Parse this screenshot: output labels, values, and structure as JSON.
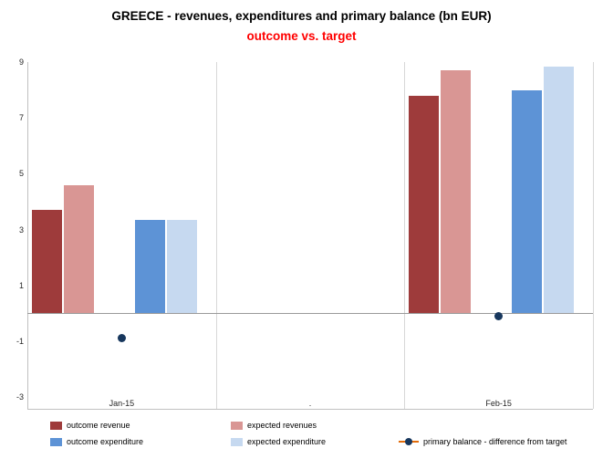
{
  "title": "GREECE - revenues, expenditures and primary balance (bn EUR)",
  "subtitle": "outcome vs. target",
  "colors": {
    "subtitle": "#ff0000",
    "outcome_revenue": "#9e3b3b",
    "expected_revenues": "#d99694",
    "outcome_expenditure": "#5d93d6",
    "expected_expenditure": "#c6d9f0",
    "primary_balance_dot": "#17375d",
    "legend_line": "#e36c09"
  },
  "chart_data": {
    "type": "bar",
    "subtype": "grouped bars with scatter points for primary balance",
    "categories": [
      "Jan-15",
      ".",
      "Feb-15"
    ],
    "series": [
      {
        "name": "outcome revenue",
        "type": "bar",
        "color_key": "outcome_revenue",
        "values": [
          3.7,
          null,
          7.8
        ]
      },
      {
        "name": "expected revenues",
        "type": "bar",
        "color_key": "expected_revenues",
        "values": [
          4.6,
          null,
          8.7
        ]
      },
      {
        "name": "outcome expenditure",
        "type": "bar",
        "color_key": "outcome_expenditure",
        "values": [
          3.35,
          null,
          8.0
        ]
      },
      {
        "name": "expected expenditure",
        "type": "bar",
        "color_key": "expected_expenditure",
        "values": [
          3.35,
          null,
          8.85
        ]
      },
      {
        "name": "primary balance - difference from target",
        "type": "point",
        "color_key": "primary_balance_dot",
        "values": [
          -0.9,
          null,
          -0.1
        ]
      }
    ],
    "y_axis": {
      "min": -3,
      "max": 9,
      "tick_step": 2,
      "ticks": [
        9,
        7,
        5,
        3,
        1,
        -1,
        -3
      ]
    },
    "grid": "vertical category separators and zero line only",
    "legend_position": "bottom"
  },
  "legend": {
    "items": [
      {
        "label": "outcome revenue",
        "swatch": "outcome_revenue",
        "marker": "square"
      },
      {
        "label": "expected revenues",
        "swatch": "expected_revenues",
        "marker": "square"
      },
      {
        "label": "outcome expenditure",
        "swatch": "outcome_expenditure",
        "marker": "square"
      },
      {
        "label": "expected expenditure",
        "swatch": "expected_expenditure",
        "marker": "square"
      },
      {
        "label": "primary balance - difference from target",
        "swatch": "primary_balance_dot",
        "marker": "line-dot"
      }
    ]
  }
}
